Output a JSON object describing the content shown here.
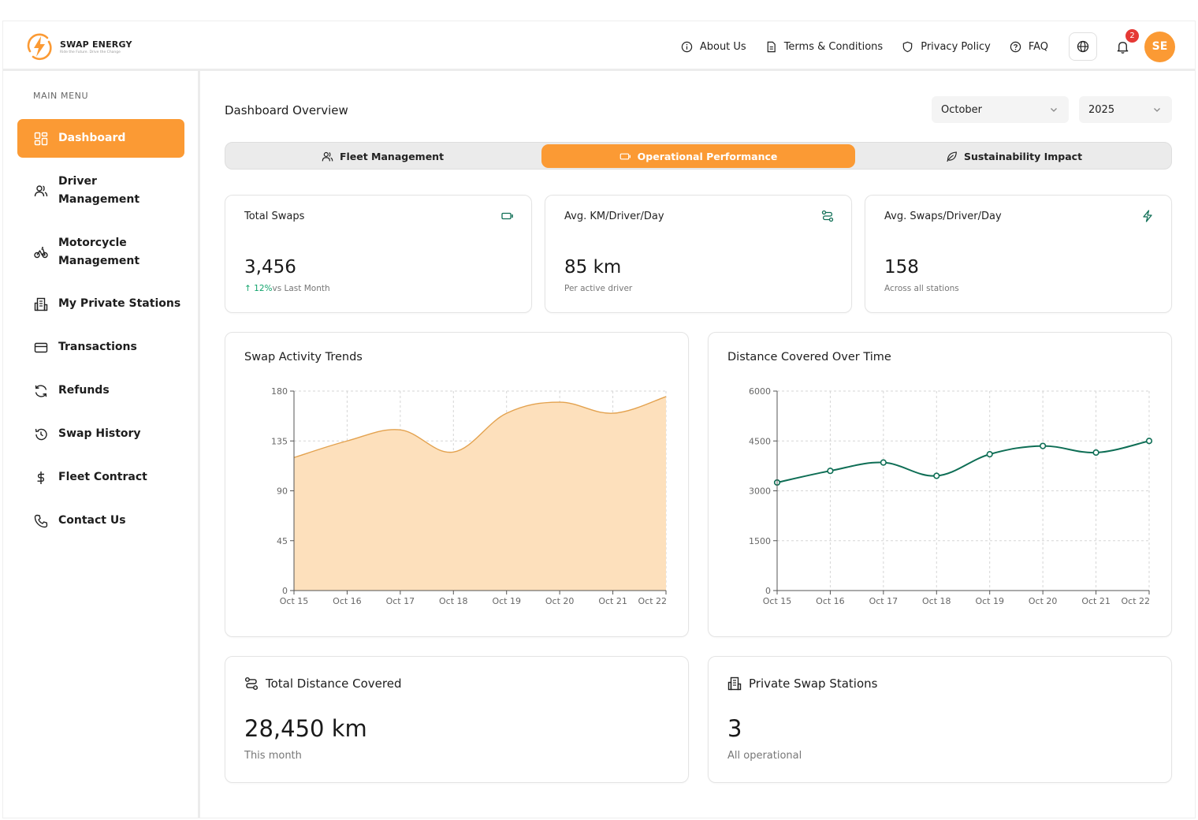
{
  "brand": {
    "name": "SWAP ENERGY",
    "tagline": "Ride the Future. Drive the Change"
  },
  "topnav": {
    "about": "About Us",
    "terms": "Terms & Conditions",
    "privacy": "Privacy Policy",
    "faq": "FAQ",
    "notifications_count": "2",
    "avatar_initials": "SE"
  },
  "sidebar": {
    "caption": "MAIN MENU",
    "items": [
      {
        "label": "Dashboard",
        "icon": "grid-icon"
      },
      {
        "label_l1": "Driver",
        "label_l2": "Management",
        "icon": "users-icon"
      },
      {
        "label_l1": "Motorcycle",
        "label_l2": "Management",
        "icon": "bike-icon"
      },
      {
        "label": "My Private Stations",
        "icon": "building-icon"
      },
      {
        "label": "Transactions",
        "icon": "card-icon"
      },
      {
        "label": "Refunds",
        "icon": "refresh-icon"
      },
      {
        "label": "Swap History",
        "icon": "history-icon"
      },
      {
        "label": "Fleet Contract",
        "icon": "dollar-icon"
      },
      {
        "label": "Contact Us",
        "icon": "phone-icon"
      }
    ]
  },
  "header": {
    "title": "Dashboard Overview",
    "month": "October",
    "year": "2025"
  },
  "tabs": [
    "Fleet Management",
    "Operational Performance",
    "Sustainability Impact"
  ],
  "stats": [
    {
      "title": "Total Swaps",
      "value": "3,456",
      "trend": "12%",
      "sub": "vs Last Month"
    },
    {
      "title": "Avg. KM/Driver/Day",
      "value": "85 km",
      "sub": "Per active driver"
    },
    {
      "title": "Avg. Swaps/Driver/Day",
      "value": "158",
      "sub": "Across all stations"
    }
  ],
  "colors": {
    "accent": "#fb9a34",
    "area_fill": "#fde0bc",
    "area_stroke": "#e3a24f",
    "line": "#0e6e55"
  },
  "chart_data": [
    {
      "type": "area",
      "title": "Swap Activity Trends",
      "categories": [
        "Oct 15",
        "Oct 16",
        "Oct 17",
        "Oct 18",
        "Oct 19",
        "Oct 20",
        "Oct 21",
        "Oct 22"
      ],
      "values": [
        120,
        135,
        145,
        125,
        160,
        170,
        160,
        175
      ],
      "yticks": [
        0,
        45,
        90,
        135,
        180
      ],
      "ylim": [
        0,
        180
      ],
      "grid": true
    },
    {
      "type": "line",
      "title": "Distance Covered Over Time",
      "categories": [
        "Oct 15",
        "Oct 16",
        "Oct 17",
        "Oct 18",
        "Oct 19",
        "Oct 20",
        "Oct 21",
        "Oct 22"
      ],
      "values": [
        3250,
        3600,
        3850,
        3450,
        4100,
        4350,
        4150,
        4500
      ],
      "yticks": [
        0,
        1500,
        3000,
        4500,
        6000
      ],
      "ylim": [
        0,
        6000
      ],
      "grid": true
    }
  ],
  "summary": [
    {
      "title": "Total Distance Covered",
      "value": "28,450 km",
      "sub": "This month"
    },
    {
      "title": "Private Swap Stations",
      "value": "3",
      "sub": "All operational"
    }
  ]
}
